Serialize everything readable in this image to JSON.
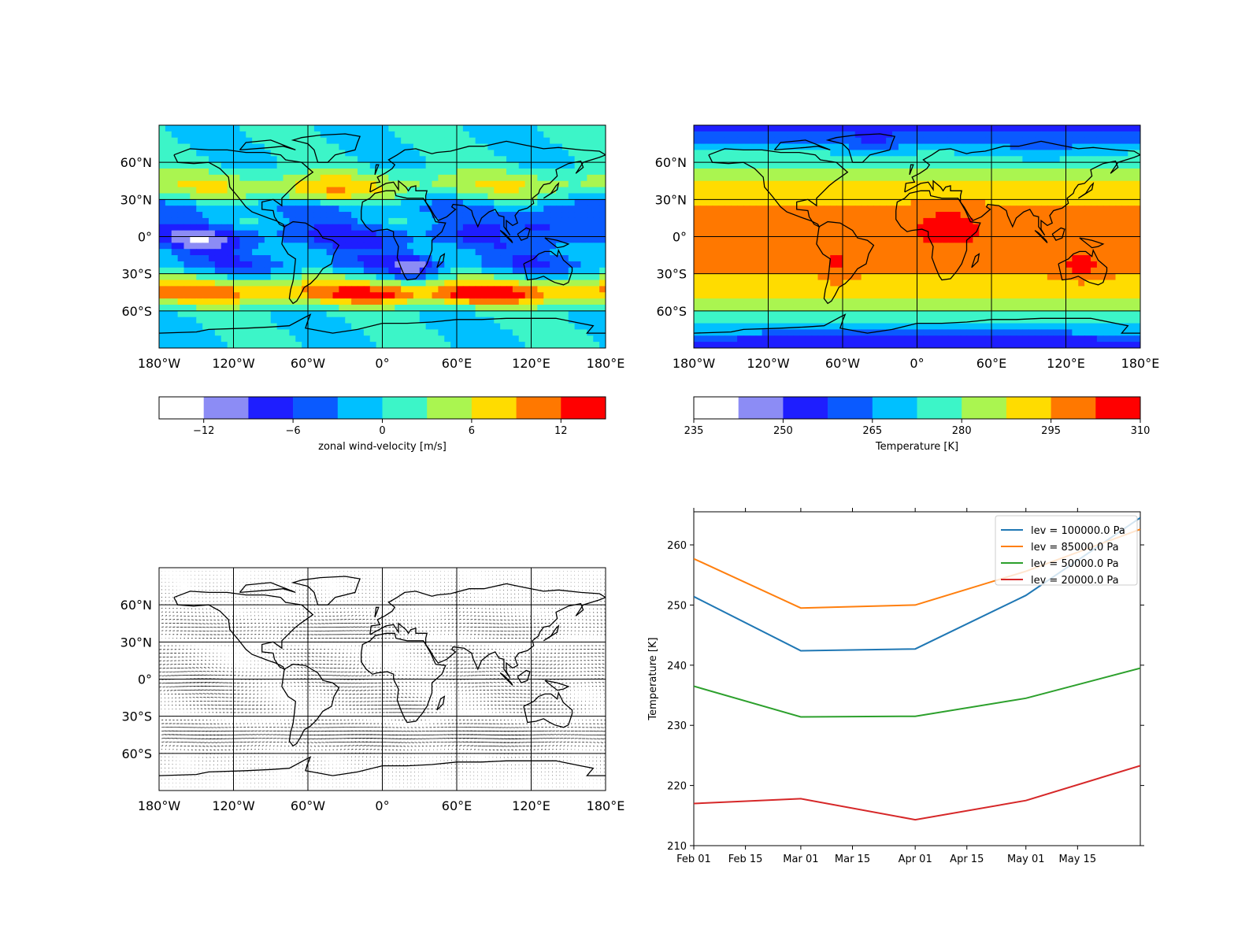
{
  "chart_data": [
    {
      "type": "heatmap",
      "title": "",
      "x_ticks": [
        "180°W",
        "120°W",
        "60°W",
        "0°",
        "60°E",
        "120°E",
        "180°E"
      ],
      "y_ticks": [
        "60°N",
        "30°N",
        "0°",
        "30°S",
        "60°S"
      ],
      "xlim": [
        -180,
        180
      ],
      "ylim": [
        -90,
        90
      ],
      "grid": true,
      "colorbar": {
        "label": "zonal wind-velocity [m/s]",
        "ticks": [
          "−12",
          "−6",
          "0",
          "6",
          "12"
        ],
        "tick_values": [
          -12,
          -6,
          0,
          6,
          12
        ],
        "range": [
          -15,
          15
        ],
        "colors": [
          "#ffffff",
          "#8c8cf5",
          "#1e1eff",
          "#0a5aff",
          "#00c0ff",
          "#3cf5c8",
          "#aaf550",
          "#ffdc00",
          "#ff7800",
          "#ff0000"
        ]
      }
    },
    {
      "type": "heatmap",
      "title": "",
      "x_ticks": [
        "180°W",
        "120°W",
        "60°W",
        "0°",
        "60°E",
        "120°E",
        "180°E"
      ],
      "y_ticks": [
        "60°N",
        "30°N",
        "0°",
        "30°S",
        "60°S"
      ],
      "xlim": [
        -180,
        180
      ],
      "ylim": [
        -90,
        90
      ],
      "grid": true,
      "colorbar": {
        "label": "Temperature [K]",
        "ticks": [
          "235",
          "250",
          "265",
          "280",
          "295",
          "310"
        ],
        "tick_values": [
          235,
          250,
          265,
          280,
          295,
          310
        ],
        "range": [
          235,
          310
        ],
        "colors": [
          "#ffffff",
          "#8c8cf5",
          "#1e1eff",
          "#0a5aff",
          "#00c0ff",
          "#3cf5c8",
          "#aaf550",
          "#ffdc00",
          "#ff7800",
          "#ff0000"
        ]
      }
    },
    {
      "type": "quiver",
      "title": "",
      "x_ticks": [
        "180°W",
        "120°W",
        "60°W",
        "0°",
        "60°E",
        "120°E",
        "180°E"
      ],
      "y_ticks": [
        "60°N",
        "30°N",
        "0°",
        "30°S",
        "60°S"
      ],
      "xlim": [
        -180,
        180
      ],
      "ylim": [
        -90,
        90
      ],
      "grid": true
    },
    {
      "type": "line",
      "title": "",
      "xlabel": "",
      "ylabel": "Temperature [K]",
      "x": [
        "2000-02-01",
        "2000-03-01",
        "2000-04-01",
        "2000-05-01",
        "2000-06-01"
      ],
      "x_ticks": [
        "Feb 01",
        "Feb 15",
        "Mar 01",
        "Mar 15",
        "Apr 01",
        "Apr 15",
        "May 01",
        "May 15"
      ],
      "y_ticks": [
        "210",
        "220",
        "230",
        "240",
        "250",
        "260"
      ],
      "ylim": [
        210,
        265.5
      ],
      "legend": "top-right",
      "series": [
        {
          "name": "lev = 100000.0 Pa",
          "color": "#1f77b4",
          "values": [
            251.4,
            242.4,
            242.7,
            251.6,
            264.5
          ]
        },
        {
          "name": "lev = 85000.0 Pa",
          "color": "#ff7f0e",
          "values": [
            257.7,
            249.5,
            250.0,
            255.6,
            262.6
          ]
        },
        {
          "name": "lev = 50000.0 Pa",
          "color": "#2ca02c",
          "values": [
            236.5,
            231.4,
            231.5,
            234.5,
            239.5
          ]
        },
        {
          "name": "lev = 20000.0 Pa",
          "color": "#d62728",
          "values": [
            217.0,
            217.8,
            214.3,
            217.5,
            223.3
          ]
        }
      ]
    }
  ]
}
